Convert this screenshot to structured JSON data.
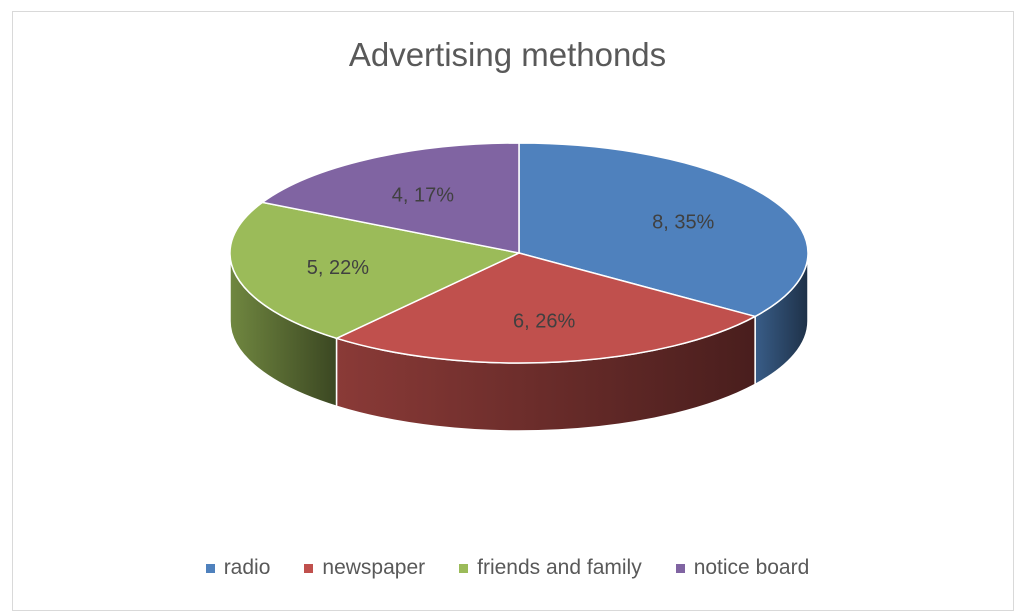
{
  "chart_data": {
    "type": "pie",
    "title": "Advertising methonds",
    "categories": [
      "radio",
      "newspaper",
      "friends and family",
      "notice board"
    ],
    "values": [
      8,
      6,
      5,
      4
    ],
    "data_labels": [
      "8, 35%",
      "6, 26%",
      "5, 22%",
      "4, 17%"
    ],
    "colors": [
      "#4F81BD",
      "#C0504D",
      "#9BBB59",
      "#8064A2"
    ],
    "three_d": true,
    "legend_position": "bottom"
  }
}
